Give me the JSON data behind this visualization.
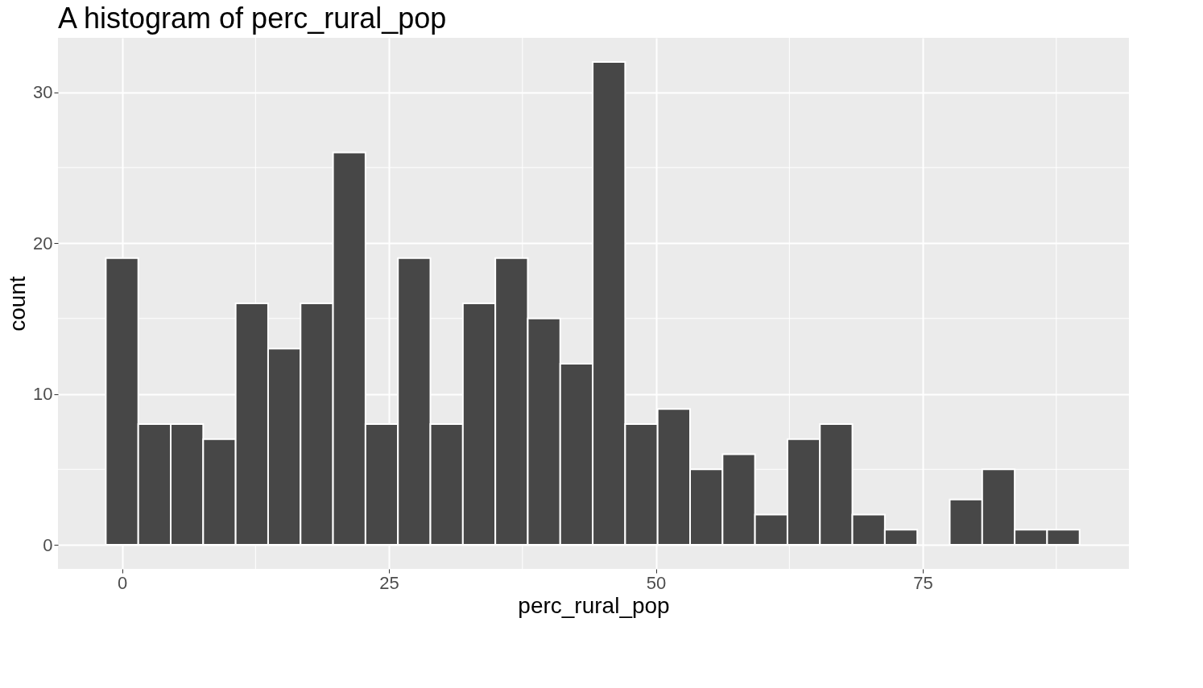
{
  "chart_data": {
    "type": "histogram",
    "title": "A histogram of perc_rural_pop",
    "xlabel": "perc_rural_pop",
    "ylabel": "count",
    "bins": [
      -1.52,
      1.52,
      4.56,
      7.6,
      10.64,
      13.68,
      16.72,
      19.76,
      22.8,
      25.84,
      28.88,
      31.92,
      34.96,
      38,
      41.04,
      44.08,
      47.12,
      50.16,
      53.2,
      56.24,
      59.28,
      62.32,
      65.36,
      68.4,
      71.44,
      74.48,
      77.52,
      80.56,
      83.6,
      86.64,
      89.68
    ],
    "values": [
      19,
      8,
      8,
      7,
      16,
      13,
      16,
      26,
      8,
      19,
      8,
      16,
      19,
      15,
      12,
      32,
      8,
      9,
      5,
      6,
      2,
      7,
      8,
      2,
      1,
      0,
      3,
      5,
      1,
      1
    ],
    "color": "#474747",
    "xlim": [
      -6,
      94.3
    ],
    "xticks": [
      0,
      25,
      50,
      75
    ],
    "ylim": [
      -1.6,
      33.6
    ],
    "yticks": [
      0,
      10,
      20,
      30
    ],
    "grid": true
  }
}
